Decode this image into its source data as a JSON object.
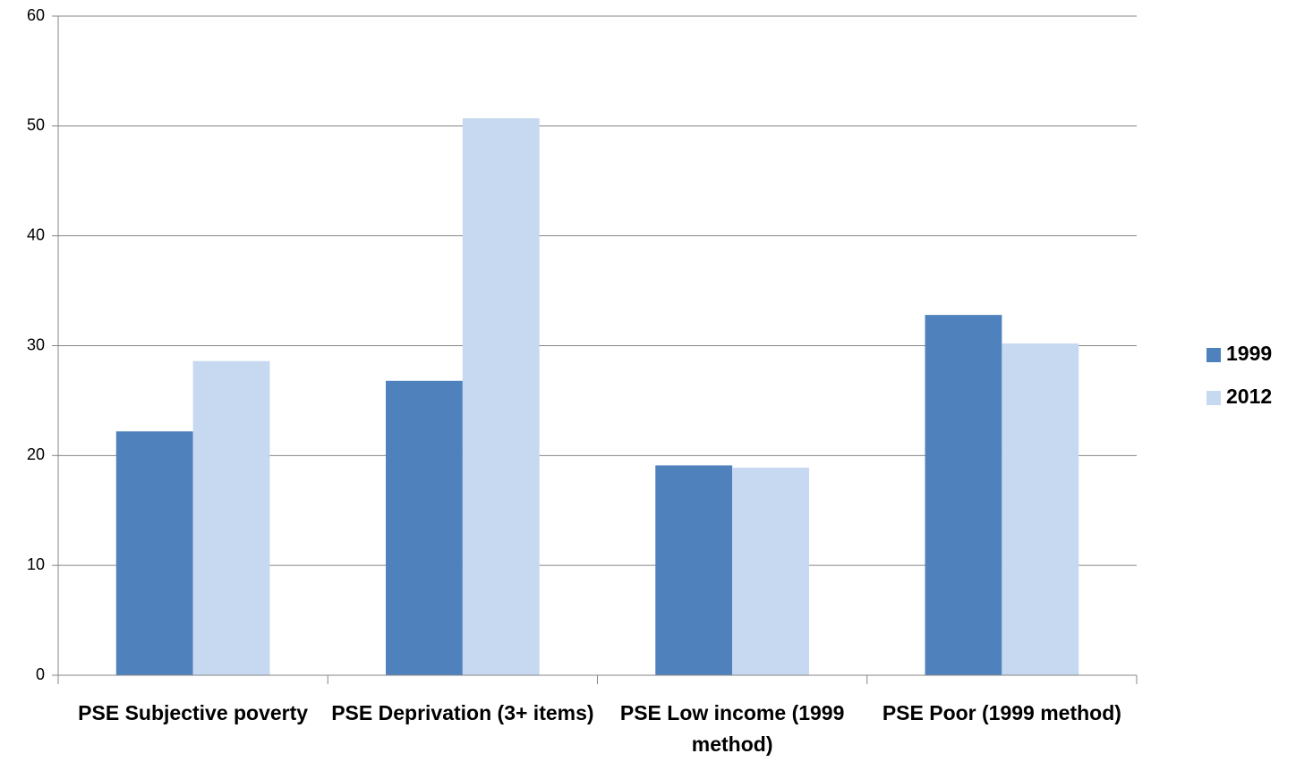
{
  "chart_data": {
    "type": "bar",
    "categories": [
      "PSE Subjective poverty",
      "PSE Deprivation (3+ items)",
      "PSE Low income (1999 method)",
      "PSE Poor (1999 method)"
    ],
    "series": [
      {
        "name": "1999",
        "color": "#4f81bd",
        "values": [
          22.2,
          26.8,
          19.1,
          32.8
        ]
      },
      {
        "name": "2012",
        "color": "#c6d9f1",
        "values": [
          28.6,
          50.7,
          18.9,
          30.2
        ]
      }
    ],
    "ylim": [
      0,
      60
    ],
    "yticks": [
      0,
      10,
      20,
      30,
      40,
      50,
      60
    ],
    "grid": true,
    "legend": "right"
  }
}
